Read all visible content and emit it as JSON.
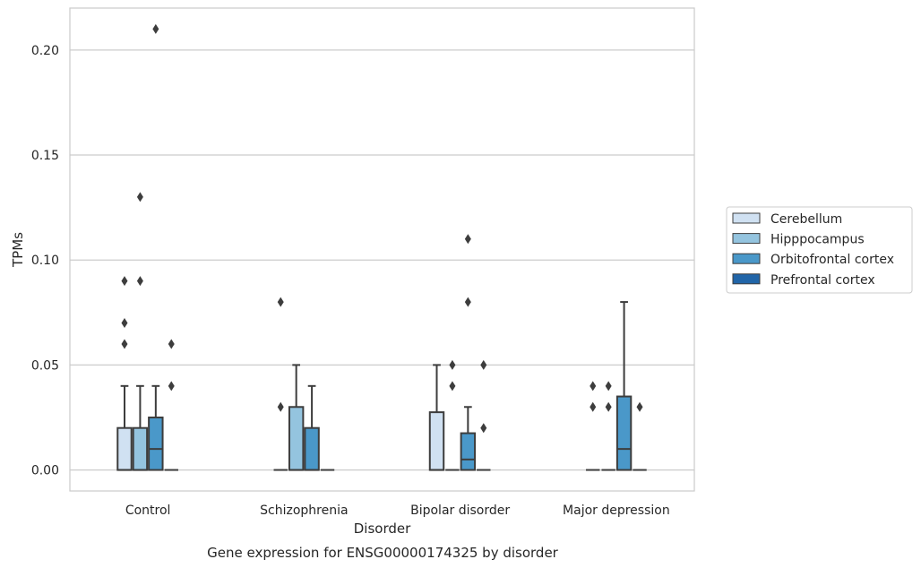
{
  "chart_data": {
    "type": "box",
    "xlabel": "Disorder",
    "ylabel": "TPMs",
    "caption": "Gene expression for ENSG00000174325 by disorder",
    "ylim": [
      -0.01,
      0.22
    ],
    "yticks": [
      0.0,
      0.05,
      0.1,
      0.15,
      0.2
    ],
    "ytick_labels": [
      "0.00",
      "0.05",
      "0.10",
      "0.15",
      "0.20"
    ],
    "grid": "horizontal",
    "legend_position": "right",
    "categories": [
      "Control",
      "Schizophrenia",
      "Bipolar disorder",
      "Major depression"
    ],
    "series": [
      {
        "name": "Cerebellum",
        "color": "#d0e1f2",
        "boxes": [
          {
            "q1": 0.0,
            "median": 0.0,
            "q3": 0.02,
            "whisker_low": 0.0,
            "whisker_high": 0.04,
            "outliers": [
              0.06,
              0.07,
              0.09
            ]
          },
          {
            "q1": 0.0,
            "median": 0.0,
            "q3": 0.0,
            "whisker_low": 0.0,
            "whisker_high": 0.0,
            "outliers": [
              0.03,
              0.08
            ]
          },
          {
            "q1": 0.0,
            "median": 0.0,
            "q3": 0.0275,
            "whisker_low": 0.0,
            "whisker_high": 0.05,
            "outliers": []
          },
          {
            "q1": 0.0,
            "median": 0.0,
            "q3": 0.0,
            "whisker_low": 0.0,
            "whisker_high": 0.0,
            "outliers": [
              0.03,
              0.04
            ]
          }
        ]
      },
      {
        "name": "Hipppocampus",
        "color": "#94c4df",
        "boxes": [
          {
            "q1": 0.0,
            "median": 0.0,
            "q3": 0.02,
            "whisker_low": 0.0,
            "whisker_high": 0.04,
            "outliers": [
              0.09,
              0.13
            ]
          },
          {
            "q1": 0.0,
            "median": 0.0,
            "q3": 0.03,
            "whisker_low": 0.0,
            "whisker_high": 0.05,
            "outliers": []
          },
          {
            "q1": 0.0,
            "median": 0.0,
            "q3": 0.0,
            "whisker_low": 0.0,
            "whisker_high": 0.0,
            "outliers": [
              0.04,
              0.05
            ]
          },
          {
            "q1": 0.0,
            "median": 0.0,
            "q3": 0.0,
            "whisker_low": 0.0,
            "whisker_high": 0.0,
            "outliers": [
              0.03,
              0.04
            ]
          }
        ]
      },
      {
        "name": "Orbitofrontal cortex",
        "color": "#4a98c9",
        "boxes": [
          {
            "q1": 0.0,
            "median": 0.01,
            "q3": 0.025,
            "whisker_low": 0.0,
            "whisker_high": 0.04,
            "outliers": [
              0.21
            ]
          },
          {
            "q1": 0.0,
            "median": 0.0,
            "q3": 0.02,
            "whisker_low": 0.0,
            "whisker_high": 0.04,
            "outliers": []
          },
          {
            "q1": 0.0,
            "median": 0.005,
            "q3": 0.0175,
            "whisker_low": 0.0,
            "whisker_high": 0.03,
            "outliers": [
              0.08,
              0.11
            ]
          },
          {
            "q1": 0.0,
            "median": 0.01,
            "q3": 0.035,
            "whisker_low": 0.0,
            "whisker_high": 0.08,
            "outliers": []
          }
        ]
      },
      {
        "name": "Prefrontal cortex",
        "color": "#2165a8",
        "boxes": [
          {
            "q1": 0.0,
            "median": 0.0,
            "q3": 0.0,
            "whisker_low": 0.0,
            "whisker_high": 0.0,
            "outliers": [
              0.04,
              0.06
            ]
          },
          {
            "q1": 0.0,
            "median": 0.0,
            "q3": 0.0,
            "whisker_low": 0.0,
            "whisker_high": 0.0,
            "outliers": []
          },
          {
            "q1": 0.0,
            "median": 0.0,
            "q3": 0.0,
            "whisker_low": 0.0,
            "whisker_high": 0.0,
            "outliers": [
              0.02,
              0.05
            ]
          },
          {
            "q1": 0.0,
            "median": 0.0,
            "q3": 0.0,
            "whisker_low": 0.0,
            "whisker_high": 0.0,
            "outliers": [
              0.03
            ]
          }
        ]
      }
    ]
  }
}
